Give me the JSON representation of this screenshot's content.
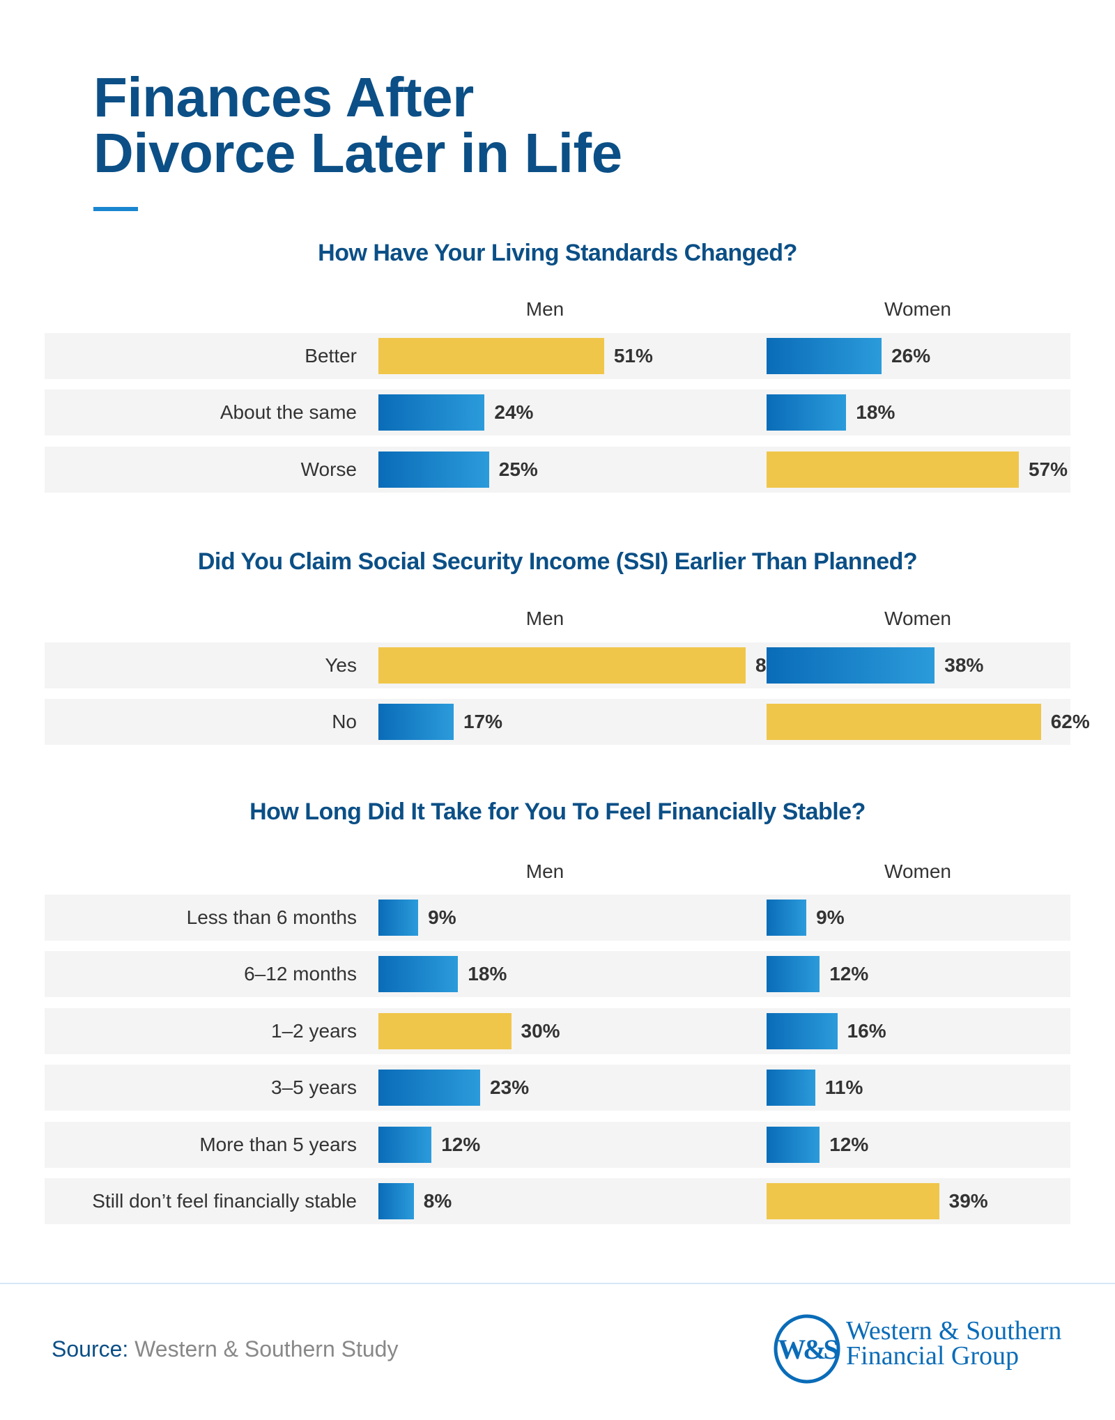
{
  "title_lines": [
    "Finances After",
    "Divorce Later in Life"
  ],
  "colors": {
    "title": "#0b4f86",
    "bar_blue_start": "#0a6cb8",
    "bar_blue_end": "#2b9bdb",
    "bar_highlight": "#f0c64a",
    "row_bg": "#f4f4f4"
  },
  "chart_data": [
    {
      "type": "bar",
      "title": "How Have Your Living Standards Changed?",
      "categories": [
        "Better",
        "About the same",
        "Worse"
      ],
      "series": [
        {
          "name": "Men",
          "values": [
            51,
            24,
            25
          ],
          "highlight": [
            true,
            false,
            false
          ]
        },
        {
          "name": "Women",
          "values": [
            26,
            18,
            57
          ],
          "highlight": [
            false,
            false,
            true
          ]
        }
      ],
      "unit": "%"
    },
    {
      "type": "bar",
      "title": "Did You Claim Social Security Income (SSI) Earlier Than Planned?",
      "categories": [
        "Yes",
        "No"
      ],
      "series": [
        {
          "name": "Men",
          "values": [
            83,
            17
          ],
          "highlight": [
            true,
            false
          ]
        },
        {
          "name": "Women",
          "values": [
            38,
            62
          ],
          "highlight": [
            false,
            true
          ]
        }
      ],
      "unit": "%"
    },
    {
      "type": "bar",
      "title": "How Long Did It Take for You To Feel Financially Stable?",
      "categories": [
        "Less than 6 months",
        "6–12 months",
        "1–2 years",
        "3–5 years",
        "More than 5 years",
        "Still don’t feel financially stable"
      ],
      "series": [
        {
          "name": "Men",
          "values": [
            9,
            18,
            30,
            23,
            12,
            8
          ],
          "highlight": [
            false,
            false,
            true,
            false,
            false,
            false
          ]
        },
        {
          "name": "Women",
          "values": [
            9,
            12,
            16,
            11,
            12,
            39
          ],
          "highlight": [
            false,
            false,
            false,
            false,
            false,
            true
          ]
        }
      ],
      "unit": "%"
    }
  ],
  "footer": {
    "source_label": "Source:",
    "source_text": " Western & Southern Study",
    "logo_monogram": "W&S",
    "logo_line1": "Western & Southern",
    "logo_line2": "Financial Group"
  }
}
